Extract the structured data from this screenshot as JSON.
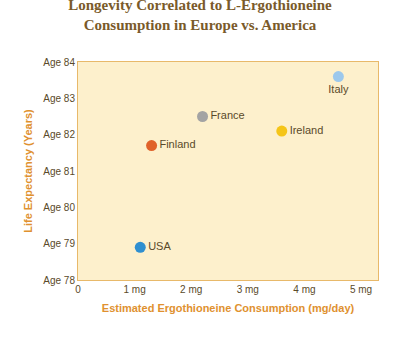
{
  "chart_data": {
    "type": "scatter",
    "title": "Longevity Correlated to L-Ergothioneine\nConsumption in Europe vs. America",
    "x_label": "Estimated Ergothioneine Consumption (mg/day)",
    "y_label": "Life Expectancy (Years)",
    "labels": [
      "USA",
      "Finland",
      "France",
      "Ireland",
      "Italy"
    ],
    "x": [
      1.1,
      1.3,
      2.2,
      3.6,
      4.6
    ],
    "values": [
      78.9,
      81.7,
      82.5,
      82.1,
      83.6
    ],
    "colors": [
      "#2f8fd0",
      "#e0622a",
      "#a3a3a3",
      "#f5c518",
      "#9cc8ec"
    ],
    "xlim": [
      0,
      5.3
    ],
    "xticks": [
      0,
      {
        "value": 1,
        "label": "1 mg"
      },
      {
        "value": 2,
        "label": "2 mg"
      },
      {
        "value": 3,
        "label": "3 mg"
      },
      {
        "value": 4,
        "label": "4 mg"
      },
      {
        "value": 5,
        "label": "5 mg"
      }
    ],
    "ylim": [
      78,
      84
    ],
    "yticks": [
      {
        "value": 78,
        "label": "Age 78"
      },
      {
        "value": 79,
        "label": "Age 79"
      },
      {
        "value": 80,
        "label": "Age 80"
      },
      {
        "value": 81,
        "label": "Age 81"
      },
      {
        "value": 82,
        "label": "Age 82"
      },
      {
        "value": 83,
        "label": "Age 83"
      },
      {
        "value": 84,
        "label": "Age 84"
      }
    ],
    "grid": false
  }
}
